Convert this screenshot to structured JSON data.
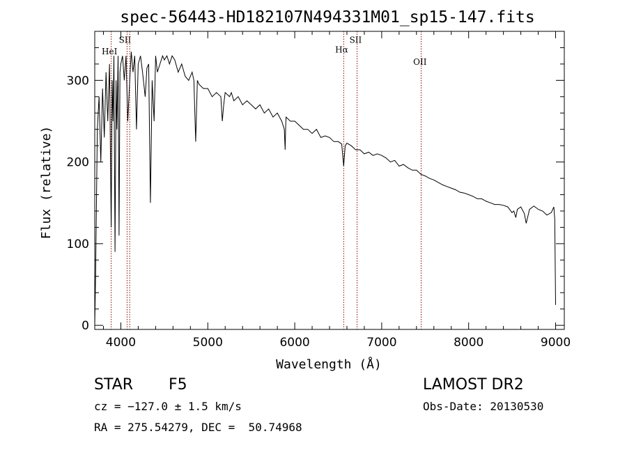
{
  "chart_data": {
    "type": "line",
    "title": "spec-56443-HD182107N494331M01_sp15-147.fits",
    "xlabel": "Wavelength (Å)",
    "ylabel": "Flux (relative)",
    "xlim": [
      3700,
      9100
    ],
    "ylim": [
      -5,
      360
    ],
    "x_ticks": [
      4000,
      5000,
      6000,
      7000,
      8000,
      9000
    ],
    "x_tick_labels": [
      "4000",
      "5000",
      "6000",
      "7000",
      "8000",
      "9000"
    ],
    "y_ticks": [
      0,
      100,
      200,
      300
    ],
    "y_tick_labels": [
      "0",
      "100",
      "200",
      "300"
    ],
    "grid": false,
    "line_color": "#000000",
    "marker_color": "#8b0000",
    "series": [
      {
        "x": [
          3700,
          3710,
          3730,
          3750,
          3770,
          3790,
          3810,
          3830,
          3850,
          3870,
          3889,
          3900,
          3910,
          3920,
          3933,
          3945,
          3955,
          3968,
          3980,
          3990,
          4000,
          4020,
          4040,
          4060,
          4080,
          4102,
          4120,
          4140,
          4160,
          4180,
          4200,
          4226,
          4250,
          4280,
          4300,
          4320,
          4340,
          4360,
          4383,
          4400,
          4420,
          4450,
          4480,
          4500,
          4530,
          4560,
          4590,
          4620,
          4660,
          4700,
          4740,
          4780,
          4820,
          4840,
          4861,
          4880,
          4900,
          4950,
          5000,
          5050,
          5100,
          5150,
          5167,
          5183,
          5200,
          5250,
          5270,
          5300,
          5350,
          5400,
          5450,
          5500,
          5550,
          5600,
          5650,
          5700,
          5750,
          5800,
          5850,
          5880,
          5890,
          5896,
          5900,
          5950,
          6000,
          6050,
          6100,
          6150,
          6200,
          6250,
          6300,
          6350,
          6400,
          6450,
          6500,
          6540,
          6563,
          6580,
          6600,
          6650,
          6700,
          6750,
          6800,
          6850,
          6900,
          6950,
          7000,
          7050,
          7100,
          7150,
          7200,
          7250,
          7300,
          7350,
          7400,
          7450,
          7500,
          7550,
          7600,
          7650,
          7700,
          7750,
          7800,
          7850,
          7900,
          7950,
          8000,
          8050,
          8100,
          8150,
          8200,
          8250,
          8300,
          8350,
          8400,
          8450,
          8498,
          8520,
          8542,
          8560,
          8600,
          8640,
          8662,
          8700,
          8750,
          8800,
          8850,
          8900,
          8950,
          8980,
          8990,
          9000
        ],
        "y": [
          0,
          60,
          240,
          280,
          200,
          290,
          230,
          310,
          250,
          320,
          120,
          300,
          250,
          330,
          90,
          300,
          240,
          330,
          110,
          310,
          320,
          330,
          300,
          330,
          250,
          300,
          335,
          310,
          330,
          240,
          320,
          330,
          310,
          280,
          315,
          320,
          150,
          300,
          250,
          330,
          310,
          320,
          330,
          325,
          330,
          320,
          330,
          325,
          310,
          320,
          305,
          300,
          310,
          300,
          225,
          300,
          295,
          290,
          290,
          280,
          285,
          280,
          250,
          270,
          285,
          280,
          285,
          275,
          280,
          270,
          275,
          270,
          265,
          270,
          260,
          265,
          255,
          260,
          250,
          240,
          215,
          245,
          255,
          250,
          250,
          245,
          240,
          240,
          235,
          240,
          230,
          232,
          230,
          225,
          225,
          222,
          195,
          220,
          223,
          220,
          215,
          215,
          210,
          212,
          208,
          210,
          208,
          205,
          200,
          202,
          195,
          197,
          193,
          190,
          190,
          185,
          183,
          180,
          178,
          175,
          172,
          170,
          168,
          166,
          163,
          162,
          160,
          158,
          155,
          155,
          152,
          150,
          148,
          148,
          147,
          145,
          138,
          140,
          132,
          142,
          145,
          137,
          125,
          142,
          146,
          142,
          140,
          135,
          138,
          145,
          130,
          25
        ]
      }
    ],
    "annotations": [
      {
        "label": "HeI",
        "x": 3889,
        "label_x": 3870,
        "label_y": 332
      },
      {
        "label": "SII",
        "x": 4072,
        "label_x": 4048,
        "label_y": 346
      },
      {
        "label": "",
        "x": 4102
      },
      {
        "label": "Hα",
        "x": 6563,
        "label_x": 6540,
        "label_y": 334
      },
      {
        "label": "SII",
        "x": 6717,
        "label_x": 6700,
        "label_y": 346
      },
      {
        "label": "OII",
        "x": 7454,
        "label_x": 7440,
        "label_y": 319
      }
    ]
  },
  "info": {
    "object_type": "STAR",
    "spectral_class": "F5",
    "survey": "LAMOST DR2",
    "redshift": "cz = −127.0 ± 1.5 km/s",
    "obs_date": "Obs-Date: 20130530",
    "coordinates": "RA = 275.54279, DEC =  50.74968"
  }
}
